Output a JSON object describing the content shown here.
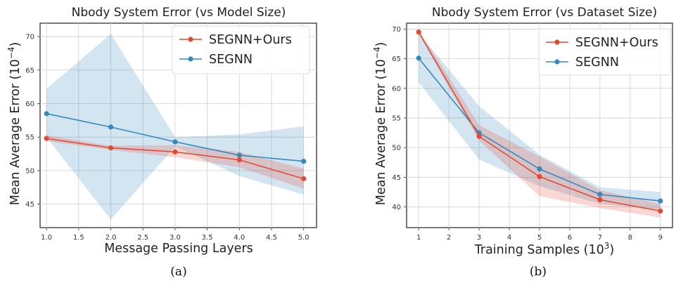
{
  "chart_data": [
    {
      "type": "line",
      "title": "Nbody System Error (vs Model Size)",
      "xlabel": "Message Passing Layers",
      "ylabel": "Mean Average Error (10",
      "ylabel_exp": "−4",
      "ylabel_end": ")",
      "caption": "(a)",
      "xlim": [
        0.9,
        5.2
      ],
      "ylim": [
        41.5,
        72
      ],
      "xticks": [
        1.0,
        1.5,
        2.0,
        2.5,
        3.0,
        3.5,
        4.0,
        4.5,
        5.0
      ],
      "xtick_labels": [
        "1.0",
        "1.5",
        "2.0",
        "2.5",
        "3.0",
        "3.5",
        "4.0",
        "4.5",
        "5.0"
      ],
      "yticks": [
        45,
        50,
        55,
        60,
        65,
        70
      ],
      "ytick_labels": [
        "45",
        "50",
        "55",
        "60",
        "65",
        "70"
      ],
      "grid": true,
      "legend": "top-right",
      "x": [
        1,
        2,
        3,
        4,
        5
      ],
      "series": [
        {
          "name": "SEGNN+Ours",
          "color": "#e24a33",
          "values": [
            54.8,
            53.4,
            52.8,
            51.6,
            48.8
          ],
          "band_low": [
            54.4,
            53.1,
            52.0,
            50.5,
            47.3
          ],
          "band_high": [
            55.3,
            53.7,
            53.8,
            52.8,
            50.3
          ]
        },
        {
          "name": "SEGNN",
          "color": "#348abd",
          "values": [
            58.5,
            56.5,
            54.3,
            52.3,
            51.4
          ],
          "band_low": [
            55.0,
            42.7,
            53.6,
            49.2,
            46.4
          ],
          "band_high": [
            62.2,
            70.4,
            55.0,
            55.4,
            56.6
          ]
        }
      ]
    },
    {
      "type": "line",
      "title": "Nbody System Error (vs Dataset Size)",
      "xlabel": "Training Samples (10",
      "xlabel_exp": "3",
      "xlabel_end": ")",
      "ylabel": "Mean Average Error (10",
      "ylabel_exp": "−4",
      "ylabel_end": ")",
      "caption": "(b)",
      "xlim": [
        0.6,
        9.4
      ],
      "ylim": [
        36.5,
        71
      ],
      "xticks": [
        1,
        2,
        3,
        4,
        5,
        6,
        7,
        8,
        9
      ],
      "xtick_labels": [
        "1",
        "2",
        "3",
        "4",
        "5",
        "6",
        "7",
        "8",
        "9"
      ],
      "yticks": [
        40,
        45,
        50,
        55,
        60,
        65,
        70
      ],
      "ytick_labels": [
        "40",
        "45",
        "50",
        "55",
        "60",
        "65",
        "70"
      ],
      "grid": true,
      "legend": "top-right",
      "x": [
        1,
        3,
        5,
        7,
        9
      ],
      "series": [
        {
          "name": "SEGNN+Ours",
          "color": "#e24a33",
          "values": [
            69.5,
            51.9,
            45.1,
            41.2,
            39.3
          ],
          "band_low": [
            69.2,
            51.2,
            41.8,
            39.8,
            38.2
          ],
          "band_high": [
            69.9,
            53.8,
            48.5,
            42.8,
            40.5
          ]
        },
        {
          "name": "SEGNN",
          "color": "#348abd",
          "values": [
            65.1,
            52.5,
            46.4,
            42.1,
            41.0
          ],
          "band_low": [
            61.0,
            48.0,
            43.5,
            40.5,
            39.5
          ],
          "band_high": [
            69.3,
            57.0,
            48.8,
            43.3,
            42.5
          ]
        }
      ]
    }
  ]
}
